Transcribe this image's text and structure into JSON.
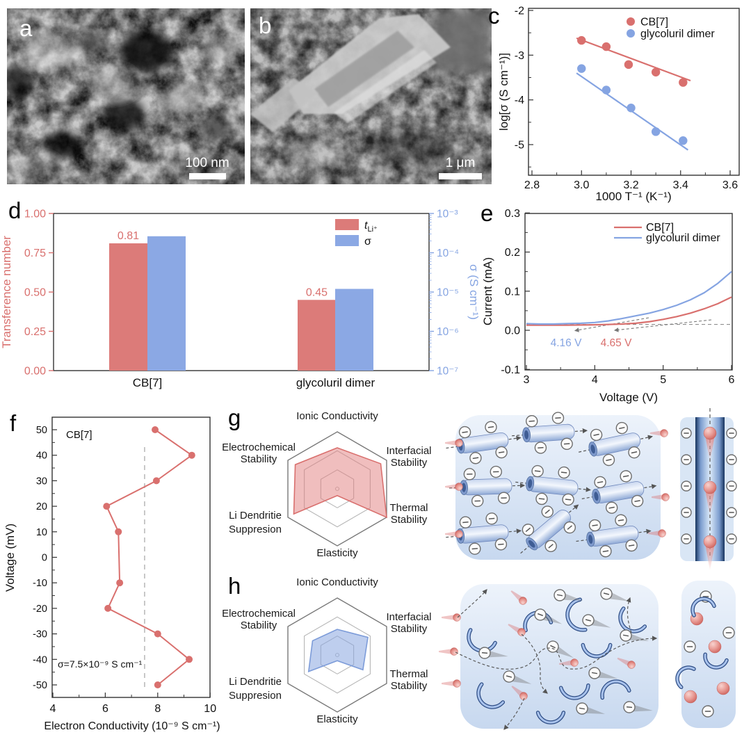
{
  "colors": {
    "red": "#d9706e",
    "blue": "#85a4e2",
    "bar_red": "#dc7b79",
    "bar_blue": "#8ba8e4",
    "spine": "#333333",
    "grid_outer": "#787878",
    "grid_inner": "#b5b5b5",
    "dashed_gray": "#8f8f8f",
    "schematic_light": "#edf3fb",
    "schematic_dark": "#c7d8ef",
    "channel_dark": "#16335e"
  },
  "panels": {
    "a": {
      "letter": "a",
      "scalebar_label": "100 nm",
      "content": "SEM image of porous nanoparticle morphology"
    },
    "b": {
      "letter": "b",
      "scalebar_label": "1 μm",
      "content": "SEM image of flake on rough aggregate"
    },
    "c": {
      "letter": "c"
    },
    "d": {
      "letter": "d"
    },
    "e": {
      "letter": "e"
    },
    "f": {
      "letter": "f"
    },
    "g": {
      "letter": "g"
    },
    "h": {
      "letter": "h"
    }
  },
  "chart_data": [
    {
      "id": "c",
      "type": "scatter",
      "xlabel": "1000 T⁻¹ (K⁻¹)",
      "ylabel": "log[σ (S cm⁻¹)]",
      "xlim": [
        2.79,
        3.65
      ],
      "ylim": [
        -5.68,
        -1.95
      ],
      "xticks": [
        "2.8",
        "3.0",
        "3.2",
        "3.4",
        "3.6"
      ],
      "xtick_vals": [
        2.8,
        3.0,
        3.2,
        3.4,
        3.6
      ],
      "xminor": [
        2.9,
        3.1,
        3.3,
        3.5
      ],
      "yticks": [
        "-2",
        "-3",
        "-4",
        "-5"
      ],
      "ytick_vals": [
        -2,
        -3,
        -4,
        -5
      ],
      "yminor": [
        -2.5,
        -3.5,
        -4.5,
        -5.5
      ],
      "legend": [
        "CB[7]",
        "glycoluril dimer"
      ],
      "legend_position": "top-right",
      "series": [
        {
          "name": "CB[7]",
          "x": [
            3.0,
            3.1,
            3.19,
            3.3,
            3.41
          ],
          "y": [
            -2.67,
            -2.81,
            -3.21,
            -3.38,
            -3.61
          ],
          "fit": [
            [
              2.98,
              -2.62
            ],
            [
              3.44,
              -3.57
            ]
          ]
        },
        {
          "name": "glycoluril dimer",
          "x": [
            3.0,
            3.1,
            3.2,
            3.3,
            3.41
          ],
          "y": [
            -3.3,
            -3.78,
            -4.18,
            -4.71,
            -4.91
          ],
          "fit": [
            [
              2.98,
              -3.4
            ],
            [
              3.43,
              -5.12
            ]
          ]
        }
      ]
    },
    {
      "id": "d",
      "type": "bar",
      "categories": [
        "CB[7]",
        "glycoluril dimer"
      ],
      "left_axis": {
        "label": "Transference number",
        "ticks": [
          "0.00",
          "0.25",
          "0.50",
          "0.75",
          "1.00"
        ],
        "tick_vals": [
          0,
          0.25,
          0.5,
          0.75,
          1
        ],
        "range": [
          0,
          1
        ]
      },
      "right_axis": {
        "label": "σ (S cm⁻¹)",
        "ticks": [
          "10⁻³",
          "10⁻⁴",
          "10⁻⁵",
          "10⁻⁶",
          "10⁻⁷"
        ],
        "tick_exps": [
          -3,
          -4,
          -5,
          -6,
          -7
        ]
      },
      "legend": [
        {
          "main": "t",
          "sub": "Li⁺"
        },
        {
          "main": "σ",
          "sub": ""
        }
      ],
      "series": [
        {
          "name": "tLi⁺",
          "values": [
            0.81,
            0.45
          ],
          "bar_labels": [
            "0.81",
            "0.45"
          ]
        },
        {
          "name": "σ",
          "log_values": [
            -3.58,
            -4.92
          ]
        }
      ]
    },
    {
      "id": "e",
      "type": "line",
      "xlabel": "Voltage (V)",
      "ylabel": "Current (mA)",
      "xlim": [
        3,
        6
      ],
      "ylim": [
        -0.1,
        0.3
      ],
      "xticks": [
        "3",
        "4",
        "5",
        "6"
      ],
      "xtick_vals": [
        3,
        4,
        5,
        6
      ],
      "xminor": [
        3.5,
        4.5,
        5.5
      ],
      "yticks": [
        "0.3",
        "0.2",
        "0.1",
        "0.0",
        "-0.1"
      ],
      "ytick_vals": [
        0.3,
        0.2,
        0.1,
        0.0,
        -0.1
      ],
      "yminor": [
        0.25,
        0.15,
        0.05,
        -0.05
      ],
      "legend": [
        "CB[7]",
        "glycoluril dimer"
      ],
      "baseline_current": 0.015,
      "annotations": [
        {
          "text": "4.16 V",
          "series": "glycoluril dimer"
        },
        {
          "text": "4.65 V",
          "series": "CB[7]"
        }
      ],
      "series": [
        {
          "name": "CB[7]",
          "x": [
            3.0,
            3.2,
            3.4,
            3.6,
            3.8,
            4.0,
            4.2,
            4.4,
            4.6,
            4.8,
            5.0,
            5.2,
            5.4,
            5.6,
            5.8,
            6.0
          ],
          "y": [
            0.013,
            0.013,
            0.013,
            0.013,
            0.0135,
            0.014,
            0.015,
            0.016,
            0.018,
            0.022,
            0.028,
            0.035,
            0.044,
            0.055,
            0.068,
            0.085
          ]
        },
        {
          "name": "glycoluril dimer",
          "x": [
            3.0,
            3.2,
            3.4,
            3.6,
            3.8,
            4.0,
            4.2,
            4.4,
            4.6,
            4.8,
            5.0,
            5.2,
            5.4,
            5.6,
            5.8,
            6.0
          ],
          "y": [
            0.017,
            0.016,
            0.016,
            0.017,
            0.018,
            0.02,
            0.024,
            0.03,
            0.037,
            0.044,
            0.053,
            0.064,
            0.078,
            0.096,
            0.12,
            0.15
          ]
        }
      ]
    },
    {
      "id": "f",
      "type": "line",
      "xlabel": "Electron Conductivity (10⁻⁹ S cm⁻¹)",
      "ylabel": "Voltage (mV)",
      "xlim": [
        3.95,
        10.1
      ],
      "ylim": [
        -55,
        57
      ],
      "xticks": [
        "4",
        "6",
        "8",
        "10"
      ],
      "xtick_vals": [
        4,
        6,
        8,
        10
      ],
      "xminor": [
        5,
        7,
        9
      ],
      "yticks": [
        "50",
        "40",
        "30",
        "20",
        "10",
        "0",
        "-10",
        "-20",
        "-30",
        "-40",
        "-50"
      ],
      "ytick_vals": [
        50,
        40,
        30,
        20,
        10,
        0,
        -10,
        -20,
        -30,
        -40,
        -50
      ],
      "annotations": [
        {
          "text": "CB[7]"
        },
        {
          "text": "σ=7.5×10⁻⁹ S cm⁻¹"
        }
      ],
      "reference_x": 7.5,
      "series": [
        {
          "name": "CB[7]",
          "x": [
            7.9,
            9.3,
            7.95,
            6.05,
            6.5,
            6.55,
            6.1,
            8.0,
            9.2,
            8.0
          ],
          "y": [
            50,
            40,
            30,
            20,
            10,
            -10,
            -20,
            -30,
            -40,
            -50
          ]
        }
      ]
    },
    {
      "id": "radar_g",
      "type": "radar",
      "name": "CB[7]",
      "axes_lines": [
        [
          "Ionic Conductivity"
        ],
        [
          "Interfacial",
          "Stability"
        ],
        [
          "Thermal",
          "Stability"
        ],
        [
          "Elasticity"
        ],
        [
          "Li Dendritie",
          "Suppresion"
        ],
        [
          "Electrochemical",
          "Stability"
        ]
      ],
      "values": [
        0.72,
        0.88,
        1.0,
        0.12,
        0.88,
        0.85
      ],
      "rings": 3
    },
    {
      "id": "radar_h",
      "type": "radar",
      "name": "glycoluril dimer",
      "axes_lines": [
        [
          "Ionic Conductivity"
        ],
        [
          "Interfacial",
          "Stability"
        ],
        [
          "Thermal",
          "Stability"
        ],
        [
          "Elasticity"
        ],
        [
          "Li Dendritie",
          "Suppresion"
        ],
        [
          "Electrochemical",
          "Stability"
        ]
      ],
      "values": [
        0.45,
        0.62,
        0.52,
        0.1,
        0.58,
        0.5
      ],
      "rings": 3
    }
  ],
  "schematics": {
    "g": {
      "icons": [
        "nanotube-icon",
        "anion-icon",
        "lithium-ion-icon",
        "dashed-arrow-icon",
        "ion-channel-icon"
      ]
    },
    "h": {
      "icons": [
        "glycoluril-arc-icon",
        "anion-comet-icon",
        "lithium-ion-icon",
        "dashed-arrow-icon",
        "electrolyte-region-icon"
      ]
    }
  }
}
